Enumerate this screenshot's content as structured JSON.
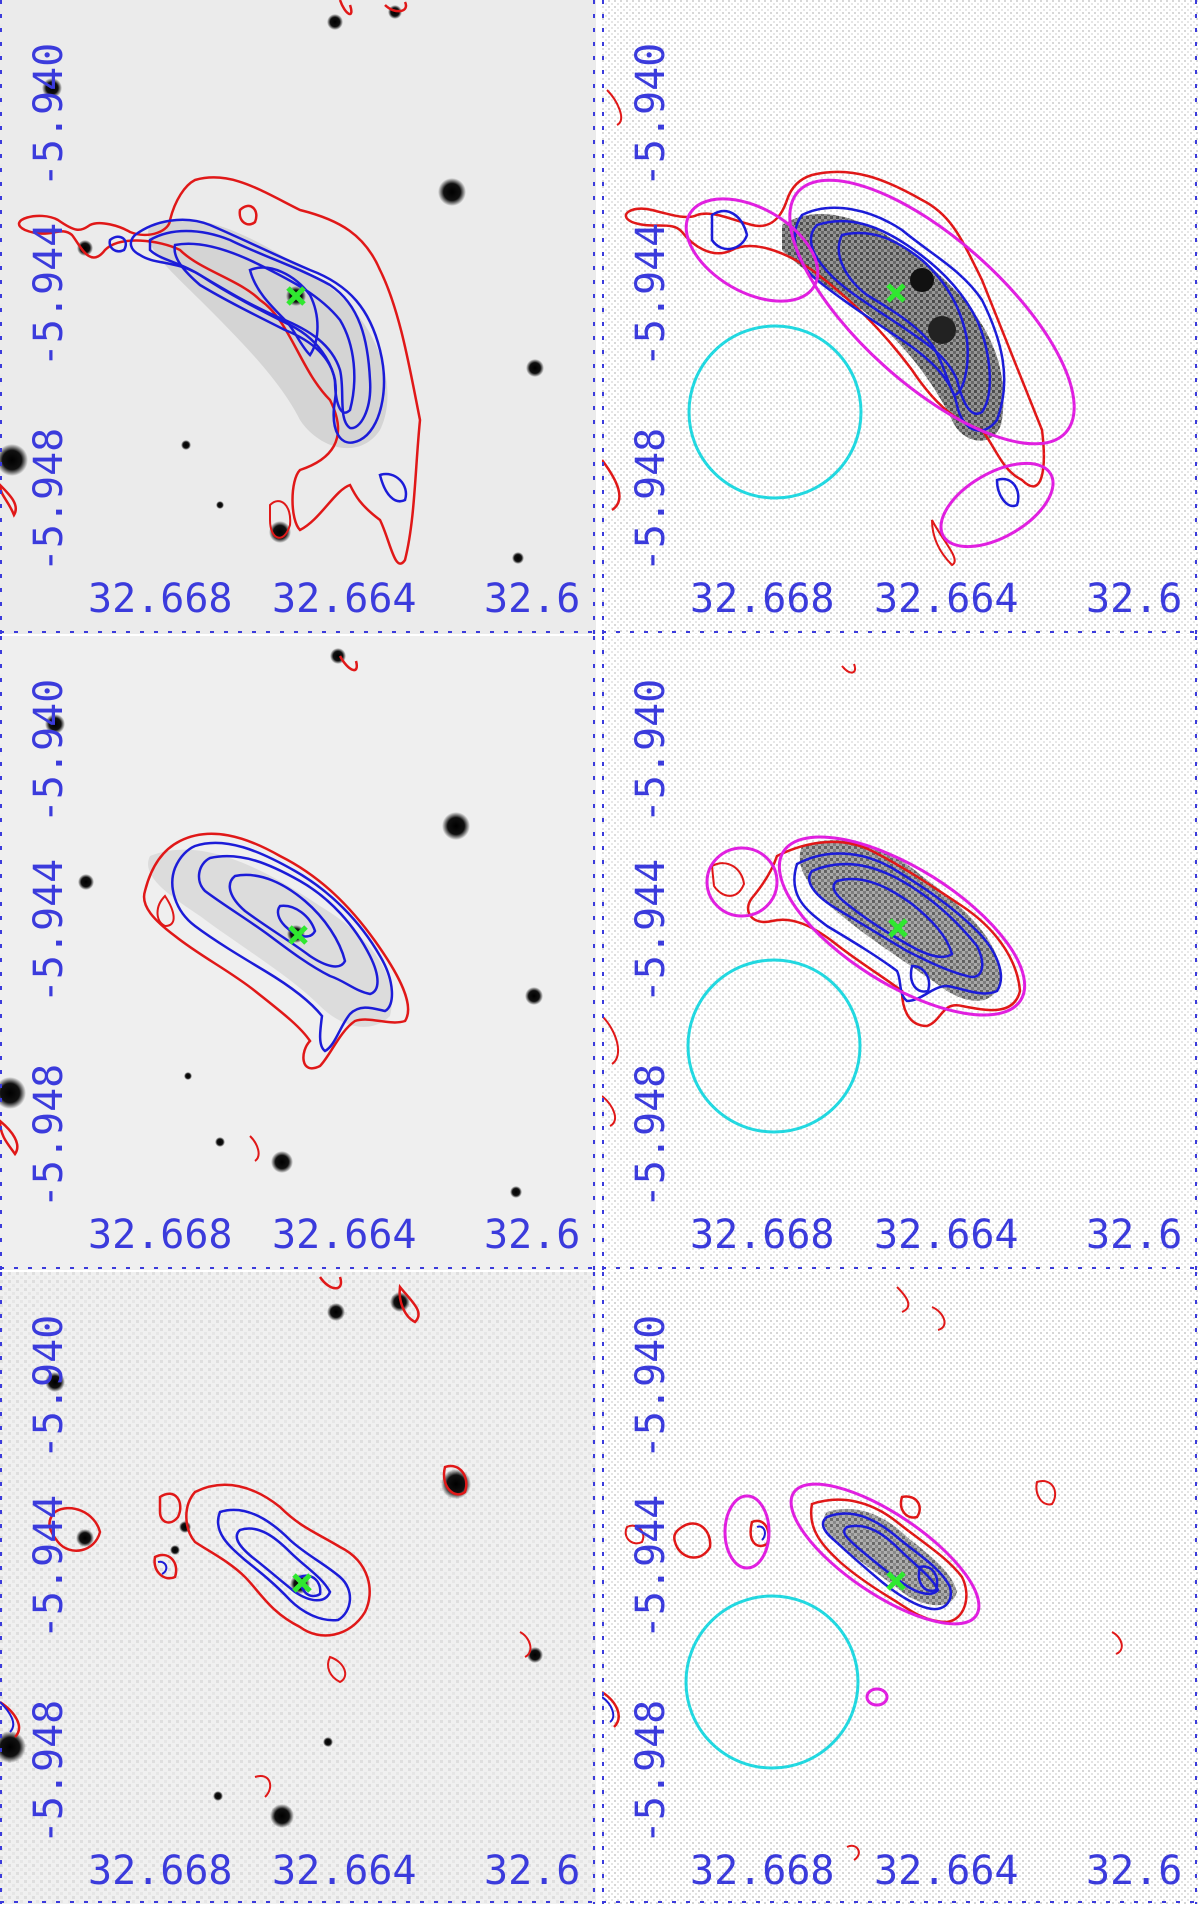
{
  "colors": {
    "axis": "#3b3bdc",
    "contour_outer": "#e01818",
    "contour_inner": "#1c1cd8",
    "aperture_source": "#e020e0",
    "aperture_background": "#22d8e0",
    "center_marker": "#30e830"
  },
  "axes": {
    "x_tick_labels": [
      "32.668",
      "32.664",
      "32.6"
    ],
    "y_tick_labels": [
      "-5.940",
      "-5.944",
      "-5.948"
    ]
  },
  "icons": {
    "center_marker": "x-cross-icon",
    "background_aperture": "circle-icon",
    "source_aperture": "ellipse-icon"
  },
  "rows": [
    {
      "name": "row-1",
      "panels": [
        "left",
        "right"
      ]
    },
    {
      "name": "row-2",
      "panels": [
        "left",
        "right"
      ]
    },
    {
      "name": "row-3",
      "panels": [
        "left",
        "right"
      ]
    }
  ]
}
